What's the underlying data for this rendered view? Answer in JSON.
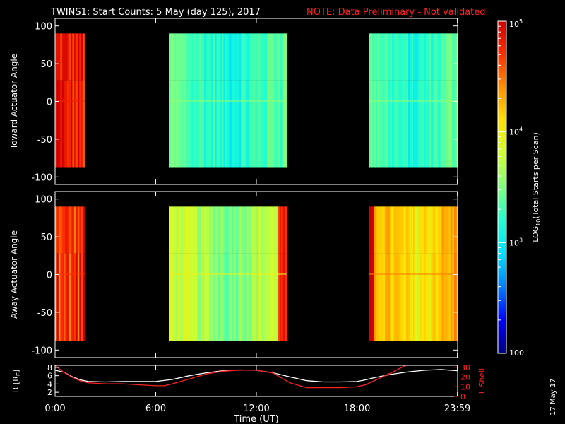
{
  "header": {
    "title": "TWINS1: Start Counts:  5 May (day 125), 2017",
    "note": "NOTE: Data Preliminary - Not validated"
  },
  "footer": {
    "date_stamp": "17 May 17"
  },
  "chart_data": [
    {
      "type": "heatmap",
      "panel": "toward",
      "ylabel": "Toward Actuator Angle",
      "ylim": [
        -110,
        110
      ],
      "yticks": [
        -100,
        -50,
        0,
        50,
        100
      ],
      "xlim": [
        0,
        24
      ],
      "x_unit": "hours UT",
      "value_scale": "log",
      "data_blocks": [
        {
          "x_start": 0.0,
          "x_end": 1.75,
          "y_range": [
            -88,
            90
          ],
          "log10_counts_approx": 4.8
        },
        {
          "x_start": 6.8,
          "x_end": 13.8,
          "y_range": [
            -88,
            90
          ],
          "log10_counts_approx": 3.3
        },
        {
          "x_start": 18.7,
          "x_end": 24.0,
          "y_range": [
            -88,
            90
          ],
          "log10_counts_approx": 3.3
        }
      ]
    },
    {
      "type": "heatmap",
      "panel": "away",
      "ylabel": "Away Actuator Angle",
      "ylim": [
        -110,
        110
      ],
      "yticks": [
        -100,
        -50,
        0,
        50,
        100
      ],
      "xlim": [
        0,
        24
      ],
      "x_unit": "hours UT",
      "value_scale": "log",
      "data_blocks": [
        {
          "x_start": 0.0,
          "x_end": 1.75,
          "y_range": [
            -88,
            90
          ],
          "log10_counts_approx": 4.7
        },
        {
          "x_start": 6.8,
          "x_end": 13.8,
          "y_range": [
            -88,
            90
          ],
          "log10_counts_approx": 3.7
        },
        {
          "x_start": 18.7,
          "x_end": 24.0,
          "y_range": [
            -88,
            90
          ],
          "log10_counts_approx": 4.2
        }
      ]
    },
    {
      "type": "line",
      "panel": "orbit",
      "ylabel": "R [R",
      "ylabel_sub": "E",
      "ylabel_end": "]",
      "ylim": [
        1,
        8.5
      ],
      "yticks": [
        2,
        4,
        6,
        8
      ],
      "y2label": "L Shell",
      "y2lim": [
        0,
        32
      ],
      "y2ticks": [
        0,
        10,
        20,
        30
      ],
      "xlabel": "Time (UT)",
      "xlim": [
        0,
        24
      ],
      "xticks": [
        0,
        6,
        12,
        18,
        23.983
      ],
      "xtick_labels": [
        "0:00",
        "6:00",
        "12:00",
        "18:00",
        "23:59"
      ],
      "series": [
        {
          "name": "R",
          "color": "#ffffff",
          "axis": "left",
          "x": [
            0,
            0.5,
            1,
            1.5,
            2,
            3,
            4,
            5,
            6,
            7,
            8,
            9,
            10,
            11,
            12,
            13,
            14,
            15,
            16,
            17,
            18,
            18.5,
            19,
            20,
            21,
            22,
            23,
            24
          ],
          "y": [
            7.3,
            6.9,
            5.8,
            5.0,
            4.6,
            4.5,
            4.6,
            4.6,
            4.6,
            5.1,
            6.0,
            6.7,
            7.2,
            7.4,
            7.3,
            6.7,
            5.7,
            4.8,
            4.5,
            4.5,
            4.6,
            5.0,
            5.5,
            6.3,
            6.9,
            7.3,
            7.5,
            7.2
          ]
        },
        {
          "name": "L Shell",
          "color": "#ff2020",
          "axis": "right",
          "x": [
            0,
            0.5,
            1,
            1.5,
            2,
            3,
            4,
            5,
            6,
            6.5,
            7,
            8,
            9,
            10,
            11,
            12,
            13,
            14,
            15,
            16,
            17,
            18,
            18.5,
            19,
            20,
            20.9
          ],
          "y": [
            32,
            25,
            20,
            16,
            14,
            13,
            13,
            12,
            11,
            11,
            13,
            18,
            23,
            26,
            27,
            27,
            24,
            14,
            9,
            9,
            9,
            10,
            12,
            16,
            24,
            32
          ]
        }
      ]
    }
  ],
  "colorbar": {
    "label_prefix": "LOG",
    "label_sub": "10",
    "label_suffix": "(Total Starts per Scan)",
    "min_value": 100,
    "max_value": 100000,
    "tick_labels": [
      {
        "log10": 2,
        "base": "100",
        "exp": ""
      },
      {
        "log10": 3,
        "base": "10",
        "exp": "3"
      },
      {
        "log10": 4,
        "base": "10",
        "exp": "4"
      },
      {
        "log10": 5,
        "base": "10",
        "exp": "5"
      }
    ],
    "stops": [
      "#00007f",
      "#0000ff",
      "#0080ff",
      "#00e0ff",
      "#20ffd0",
      "#80ff80",
      "#d0ff30",
      "#ffe000",
      "#ff9000",
      "#ff3000",
      "#d00000"
    ]
  }
}
